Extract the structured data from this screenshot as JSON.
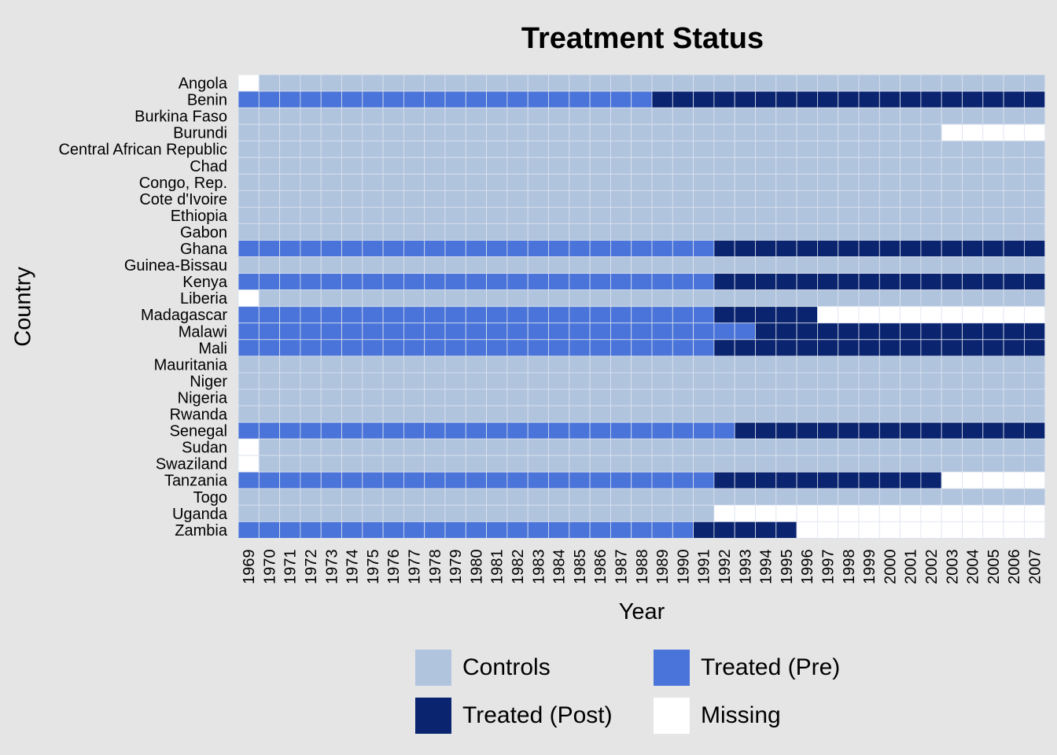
{
  "chart_data": {
    "type": "heatmap",
    "title": "Treatment Status",
    "xlabel": "Year",
    "ylabel": "Country",
    "legend_position": "bottom",
    "grid": true,
    "colors": {
      "Controls": "#b0c4de",
      "Treated (Pre)": "#4a74d9",
      "Treated (Post)": "#0a2470",
      "Missing": "#ffffff"
    },
    "legend": [
      {
        "label": "Controls",
        "status": "Controls"
      },
      {
        "label": "Treated (Pre)",
        "status": "Treated (Pre)"
      },
      {
        "label": "Treated (Post)",
        "status": "Treated (Post)"
      },
      {
        "label": "Missing",
        "status": "Missing"
      }
    ],
    "years": [
      "1969",
      "1970",
      "1971",
      "1972",
      "1973",
      "1974",
      "1975",
      "1976",
      "1977",
      "1978",
      "1979",
      "1980",
      "1981",
      "1982",
      "1983",
      "1984",
      "1985",
      "1986",
      "1987",
      "1988",
      "1989",
      "1990",
      "1991",
      "1992",
      "1993",
      "1994",
      "1995",
      "1996",
      "1997",
      "1998",
      "1999",
      "2000",
      "2001",
      "2002",
      "2003",
      "2004",
      "2005",
      "2006",
      "2007"
    ],
    "countries": [
      {
        "name": "Angola",
        "segments": [
          {
            "from": "1969",
            "to": "1969",
            "status": "Missing"
          },
          {
            "from": "1970",
            "to": "2007",
            "status": "Controls"
          }
        ]
      },
      {
        "name": "Benin",
        "segments": [
          {
            "from": "1969",
            "to": "1988",
            "status": "Treated (Pre)"
          },
          {
            "from": "1989",
            "to": "2007",
            "status": "Treated (Post)"
          }
        ]
      },
      {
        "name": "Burkina Faso",
        "segments": [
          {
            "from": "1969",
            "to": "2007",
            "status": "Controls"
          }
        ]
      },
      {
        "name": "Burundi",
        "segments": [
          {
            "from": "1969",
            "to": "2002",
            "status": "Controls"
          },
          {
            "from": "2003",
            "to": "2007",
            "status": "Missing"
          }
        ]
      },
      {
        "name": "Central African Republic",
        "segments": [
          {
            "from": "1969",
            "to": "2007",
            "status": "Controls"
          }
        ]
      },
      {
        "name": "Chad",
        "segments": [
          {
            "from": "1969",
            "to": "2007",
            "status": "Controls"
          }
        ]
      },
      {
        "name": "Congo, Rep.",
        "segments": [
          {
            "from": "1969",
            "to": "2007",
            "status": "Controls"
          }
        ]
      },
      {
        "name": "Cote d'Ivoire",
        "segments": [
          {
            "from": "1969",
            "to": "2007",
            "status": "Controls"
          }
        ]
      },
      {
        "name": "Ethiopia",
        "segments": [
          {
            "from": "1969",
            "to": "2007",
            "status": "Controls"
          }
        ]
      },
      {
        "name": "Gabon",
        "segments": [
          {
            "from": "1969",
            "to": "2007",
            "status": "Controls"
          }
        ]
      },
      {
        "name": "Ghana",
        "segments": [
          {
            "from": "1969",
            "to": "1991",
            "status": "Treated (Pre)"
          },
          {
            "from": "1992",
            "to": "2007",
            "status": "Treated (Post)"
          }
        ]
      },
      {
        "name": "Guinea-Bissau",
        "segments": [
          {
            "from": "1969",
            "to": "2007",
            "status": "Controls"
          }
        ]
      },
      {
        "name": "Kenya",
        "segments": [
          {
            "from": "1969",
            "to": "1991",
            "status": "Treated (Pre)"
          },
          {
            "from": "1992",
            "to": "2007",
            "status": "Treated (Post)"
          }
        ]
      },
      {
        "name": "Liberia",
        "segments": [
          {
            "from": "1969",
            "to": "1969",
            "status": "Missing"
          },
          {
            "from": "1970",
            "to": "2007",
            "status": "Controls"
          }
        ]
      },
      {
        "name": "Madagascar",
        "segments": [
          {
            "from": "1969",
            "to": "1991",
            "status": "Treated (Pre)"
          },
          {
            "from": "1992",
            "to": "1996",
            "status": "Treated (Post)"
          },
          {
            "from": "1997",
            "to": "2007",
            "status": "Missing"
          }
        ]
      },
      {
        "name": "Malawi",
        "segments": [
          {
            "from": "1969",
            "to": "1993",
            "status": "Treated (Pre)"
          },
          {
            "from": "1994",
            "to": "2007",
            "status": "Treated (Post)"
          }
        ]
      },
      {
        "name": "Mali",
        "segments": [
          {
            "from": "1969",
            "to": "1991",
            "status": "Treated (Pre)"
          },
          {
            "from": "1992",
            "to": "2007",
            "status": "Treated (Post)"
          }
        ]
      },
      {
        "name": "Mauritania",
        "segments": [
          {
            "from": "1969",
            "to": "2007",
            "status": "Controls"
          }
        ]
      },
      {
        "name": "Niger",
        "segments": [
          {
            "from": "1969",
            "to": "2007",
            "status": "Controls"
          }
        ]
      },
      {
        "name": "Nigeria",
        "segments": [
          {
            "from": "1969",
            "to": "2007",
            "status": "Controls"
          }
        ]
      },
      {
        "name": "Rwanda",
        "segments": [
          {
            "from": "1969",
            "to": "2007",
            "status": "Controls"
          }
        ]
      },
      {
        "name": "Senegal",
        "segments": [
          {
            "from": "1969",
            "to": "1992",
            "status": "Treated (Pre)"
          },
          {
            "from": "1993",
            "to": "2007",
            "status": "Treated (Post)"
          }
        ]
      },
      {
        "name": "Sudan",
        "segments": [
          {
            "from": "1969",
            "to": "1969",
            "status": "Missing"
          },
          {
            "from": "1970",
            "to": "2007",
            "status": "Controls"
          }
        ]
      },
      {
        "name": "Swaziland",
        "segments": [
          {
            "from": "1969",
            "to": "1969",
            "status": "Missing"
          },
          {
            "from": "1970",
            "to": "2007",
            "status": "Controls"
          }
        ]
      },
      {
        "name": "Tanzania",
        "segments": [
          {
            "from": "1969",
            "to": "1991",
            "status": "Treated (Pre)"
          },
          {
            "from": "1992",
            "to": "2002",
            "status": "Treated (Post)"
          },
          {
            "from": "2003",
            "to": "2007",
            "status": "Missing"
          }
        ]
      },
      {
        "name": "Togo",
        "segments": [
          {
            "from": "1969",
            "to": "2007",
            "status": "Controls"
          }
        ]
      },
      {
        "name": "Uganda",
        "segments": [
          {
            "from": "1969",
            "to": "1991",
            "status": "Controls"
          },
          {
            "from": "1992",
            "to": "2007",
            "status": "Missing"
          }
        ]
      },
      {
        "name": "Zambia",
        "segments": [
          {
            "from": "1969",
            "to": "1990",
            "status": "Treated (Pre)"
          },
          {
            "from": "1991",
            "to": "1995",
            "status": "Treated (Post)"
          },
          {
            "from": "1996",
            "to": "2007",
            "status": "Missing"
          }
        ]
      }
    ]
  }
}
